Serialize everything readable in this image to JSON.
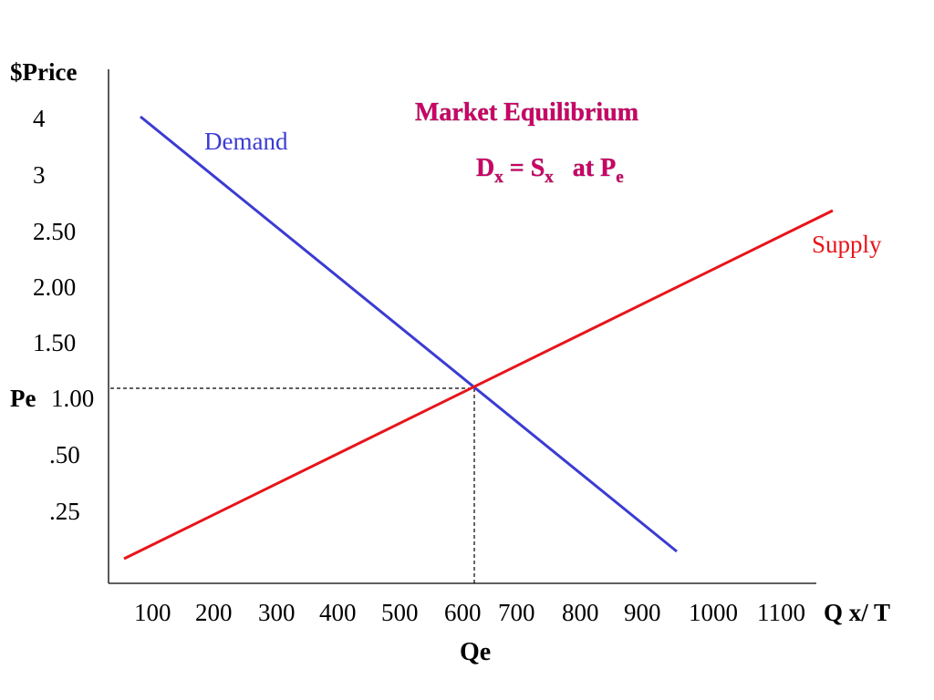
{
  "chart_data": {
    "type": "line",
    "title": "Market Equilibrium",
    "subtitle": {
      "d_main": "D",
      "d_sub": "x",
      "equals": " = ",
      "s_main": "S",
      "s_sub": "x",
      "at": "   at ",
      "p_main": "P",
      "p_sub": "e"
    },
    "ylabel": "$Price",
    "xlabel": "Q x/ T",
    "y_ticks": [
      "4",
      "3",
      "2.50",
      "2.00",
      "1.50",
      "1.00",
      ".50",
      ".25"
    ],
    "x_ticks": [
      "100",
      "200",
      "300",
      "400",
      "500",
      "600",
      "700",
      "800",
      "900",
      "1000",
      "1100"
    ],
    "equilibrium": {
      "price_label": "Pe",
      "price_tick": "1.00",
      "quantity_label": "Qe",
      "quantity": 600
    },
    "series": [
      {
        "name": "Demand",
        "color": "#3b3bd3",
        "points": [
          [
            100,
            4
          ],
          [
            600,
            1.0
          ],
          [
            1000,
            0.0
          ]
        ]
      },
      {
        "name": "Supply",
        "color": "#e8141a",
        "points": [
          [
            100,
            0.0
          ],
          [
            600,
            1.0
          ],
          [
            1100,
            3.0
          ]
        ]
      }
    ]
  }
}
